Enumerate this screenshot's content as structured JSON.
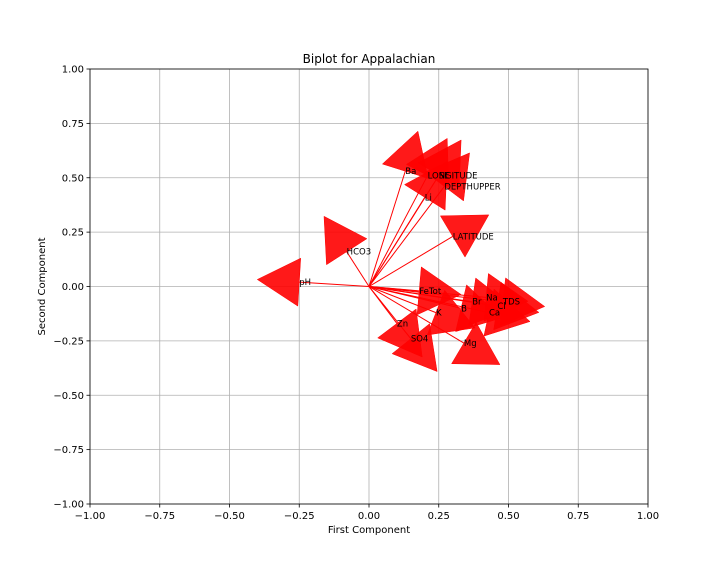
{
  "chart_data": {
    "type": "biplot",
    "title": "Biplot for Appalachian",
    "xlabel": "First Component",
    "ylabel": "Second Component",
    "xlim": [
      -1.0,
      1.0
    ],
    "ylim": [
      -1.0,
      1.0
    ],
    "xticks": [
      -1.0,
      -0.75,
      -0.5,
      -0.25,
      0.0,
      0.25,
      0.5,
      0.75,
      1.0
    ],
    "yticks": [
      -1.0,
      -0.75,
      -0.5,
      -0.25,
      0.0,
      0.25,
      0.5,
      0.75,
      1.0
    ],
    "xtick_labels": [
      "−1.00",
      "−0.75",
      "−0.50",
      "−0.25",
      "0.00",
      "0.25",
      "0.50",
      "0.75",
      "1.00"
    ],
    "ytick_labels": [
      "−1.00",
      "−0.75",
      "−0.50",
      "−0.25",
      "0.00",
      "0.25",
      "0.50",
      "0.75",
      "1.00"
    ],
    "grid": true,
    "arrow_color": "#ff0000",
    "arrows": [
      {
        "name": "pH",
        "x": -0.25,
        "y": 0.02
      },
      {
        "name": "HCO3",
        "x": -0.08,
        "y": 0.16
      },
      {
        "name": "Ba",
        "x": 0.13,
        "y": 0.53
      },
      {
        "name": "LONGITUDE",
        "x": 0.21,
        "y": 0.51
      },
      {
        "name": "SE",
        "x": 0.25,
        "y": 0.51
      },
      {
        "name": "DEPTHUPPER",
        "x": 0.27,
        "y": 0.46
      },
      {
        "name": "Li",
        "x": 0.2,
        "y": 0.41
      },
      {
        "name": "LATITUDE",
        "x": 0.3,
        "y": 0.23
      },
      {
        "name": "FeTot",
        "x": 0.18,
        "y": -0.02
      },
      {
        "name": "Na",
        "x": 0.42,
        "y": -0.05
      },
      {
        "name": "Br",
        "x": 0.37,
        "y": -0.07
      },
      {
        "name": "TDS",
        "x": 0.48,
        "y": -0.07
      },
      {
        "name": "Cl",
        "x": 0.46,
        "y": -0.09
      },
      {
        "name": "B",
        "x": 0.33,
        "y": -0.1
      },
      {
        "name": "Ca",
        "x": 0.43,
        "y": -0.12
      },
      {
        "name": "K",
        "x": 0.24,
        "y": -0.12
      },
      {
        "name": "Zn",
        "x": 0.1,
        "y": -0.17
      },
      {
        "name": "SO4",
        "x": 0.15,
        "y": -0.24
      },
      {
        "name": "Mg",
        "x": 0.34,
        "y": -0.26
      }
    ]
  }
}
